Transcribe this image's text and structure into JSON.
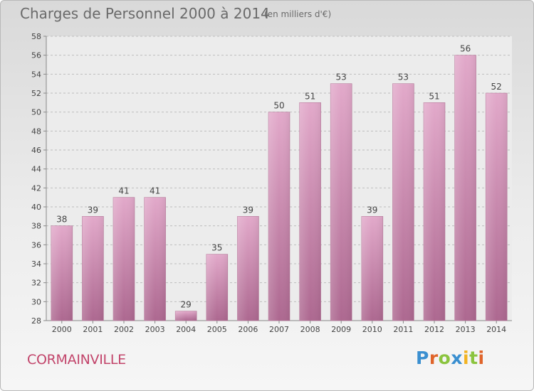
{
  "chart_data": {
    "type": "bar",
    "title": "Charges de Personnel 2000 à 2014",
    "subtitle": "(en milliers d'€)",
    "categories": [
      "2000",
      "2001",
      "2002",
      "2003",
      "2004",
      "2005",
      "2006",
      "2007",
      "2008",
      "2009",
      "2010",
      "2011",
      "2012",
      "2013",
      "2014"
    ],
    "values": [
      38,
      39,
      41,
      41,
      29,
      35,
      39,
      50,
      51,
      53,
      39,
      53,
      51,
      56,
      52
    ],
    "ylim": [
      28,
      58
    ],
    "yticks": [
      28,
      30,
      32,
      34,
      36,
      38,
      40,
      42,
      44,
      46,
      48,
      50,
      52,
      54,
      56,
      58
    ],
    "grid": true,
    "bar_color": "#d58fb7",
    "xlabel": "",
    "ylabel": ""
  },
  "footer": {
    "commune": "CORMAINVILLE",
    "logo_letters": [
      {
        "ch": "P",
        "color": "#3a8fd0"
      },
      {
        "ch": "r",
        "color": "#e0642a"
      },
      {
        "ch": "o",
        "color": "#8bc43f"
      },
      {
        "ch": "x",
        "color": "#3a8fd0"
      },
      {
        "ch": "i",
        "color": "#f2b321"
      },
      {
        "ch": "t",
        "color": "#8bc43f"
      },
      {
        "ch": "i",
        "color": "#e0642a"
      }
    ]
  }
}
